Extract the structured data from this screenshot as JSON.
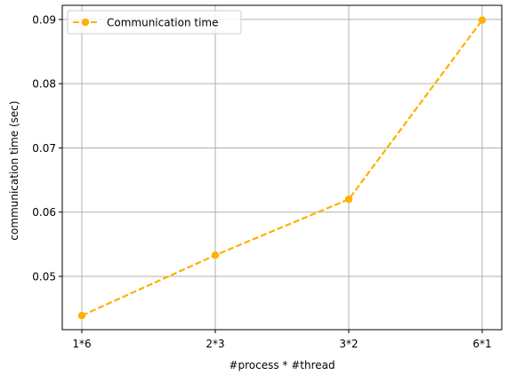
{
  "chart_data": {
    "type": "line",
    "categories": [
      "1*6",
      "2*3",
      "3*2",
      "6*1"
    ],
    "series": [
      {
        "name": "Communication time",
        "values": [
          0.0439,
          0.0533,
          0.062,
          0.0899
        ],
        "color": "#FFB000",
        "line_style": "dashed",
        "marker": "circle"
      }
    ],
    "xlabel": "#process * #thread",
    "ylabel": "communication time (sec)",
    "ylim": [
      0.0417,
      0.0922
    ],
    "yticks": [
      0.05,
      0.06,
      0.07,
      0.08,
      0.09
    ],
    "ytick_labels": [
      "0.05",
      "0.06",
      "0.07",
      "0.08",
      "0.09"
    ],
    "grid": true,
    "legend_position": "top-left"
  }
}
